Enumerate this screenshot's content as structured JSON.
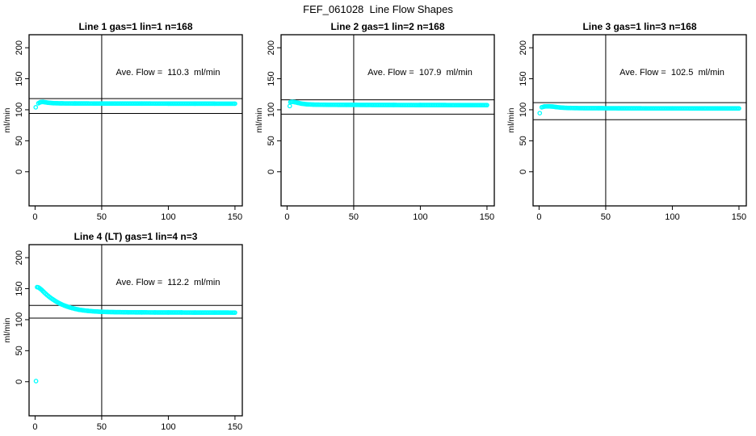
{
  "page_title": "FEF_061028  Line Flow Shapes",
  "colors": {
    "marker": "#00FFFF",
    "axis": "#000000",
    "background": "#FFFFFF"
  },
  "chart_data": [
    {
      "type": "scatter",
      "title": "Line 1 gas=1 lin=1 n=168",
      "annotation": "Ave. Flow =  110.3  ml/min",
      "ave_flow_ml_min": 110.3,
      "n": 168,
      "ylabel": "ml/min",
      "x_ticks": [
        0,
        50,
        100,
        150
      ],
      "y_ticks": [
        0,
        50,
        100,
        150,
        200
      ],
      "xlim": [
        -4.5,
        155.5
      ],
      "ylim": [
        -55,
        221
      ],
      "vline_x": 50,
      "hlines": [
        118,
        94
      ],
      "annotation_pos": [
        100,
        150
      ],
      "series_segments": [
        [
          [
            0.5,
            104
          ]
        ],
        [
          [
            2.5,
            110.5
          ],
          [
            4,
            112.3
          ],
          [
            6,
            112.6
          ],
          [
            8,
            112
          ],
          [
            10,
            111.3
          ],
          [
            14,
            110.6
          ],
          [
            20,
            110.3
          ],
          [
            30,
            110.2
          ],
          [
            45,
            110.1
          ],
          [
            60,
            110
          ],
          [
            80,
            110
          ],
          [
            100,
            109.9
          ],
          [
            120,
            109.9
          ],
          [
            135,
            109.8
          ],
          [
            150,
            109.8
          ]
        ]
      ]
    },
    {
      "type": "scatter",
      "title": "Line 2 gas=1 lin=2 n=168",
      "annotation": "Ave. Flow =  107.9  ml/min",
      "ave_flow_ml_min": 107.9,
      "n": 168,
      "ylabel": "ml/min",
      "x_ticks": [
        0,
        50,
        100,
        150
      ],
      "y_ticks": [
        0,
        50,
        100,
        150,
        200
      ],
      "xlim": [
        -4.5,
        155.5
      ],
      "ylim": [
        -55,
        221
      ],
      "vline_x": 50,
      "hlines": [
        116,
        93
      ],
      "annotation_pos": [
        100,
        150
      ],
      "series_segments": [
        [
          [
            2,
            106
          ]
        ],
        [
          [
            2.5,
            112.3
          ],
          [
            4,
            112.8
          ],
          [
            6,
            112.2
          ],
          [
            8,
            111.2
          ],
          [
            11,
            109.8
          ],
          [
            15,
            108.8
          ],
          [
            20,
            108.3
          ],
          [
            30,
            108
          ],
          [
            45,
            107.9
          ],
          [
            60,
            107.8
          ],
          [
            80,
            107.7
          ],
          [
            100,
            107.6
          ],
          [
            125,
            107.5
          ],
          [
            150,
            107.5
          ]
        ]
      ]
    },
    {
      "type": "scatter",
      "title": "Line 3 gas=1 lin=3 n=168",
      "annotation": "Ave. Flow =  102.5  ml/min",
      "ave_flow_ml_min": 102.5,
      "n": 168,
      "ylabel": "ml/min",
      "x_ticks": [
        0,
        50,
        100,
        150
      ],
      "y_ticks": [
        0,
        50,
        100,
        150,
        200
      ],
      "xlim": [
        -4.5,
        155.5
      ],
      "ylim": [
        -55,
        221
      ],
      "vline_x": 50,
      "hlines": [
        111.5,
        84
      ],
      "annotation_pos": [
        100,
        150
      ],
      "series_segments": [
        [
          [
            0.5,
            94.5
          ]
        ],
        [
          [
            2,
            104
          ],
          [
            4,
            105.3
          ],
          [
            7,
            105.5
          ],
          [
            10,
            105.2
          ],
          [
            13,
            104.3
          ],
          [
            17,
            103.4
          ],
          [
            22,
            102.9
          ],
          [
            30,
            102.6
          ],
          [
            45,
            102.5
          ],
          [
            60,
            102.4
          ],
          [
            80,
            102.3
          ],
          [
            100,
            102.3
          ],
          [
            125,
            102.2
          ],
          [
            150,
            102.2
          ]
        ]
      ]
    },
    {
      "type": "scatter",
      "title": "Line 4 (LT) gas=1 lin=4 n=3",
      "annotation": "Ave. Flow =  112.2  ml/min",
      "ave_flow_ml_min": 112.2,
      "n": 3,
      "ylabel": "ml/min",
      "x_ticks": [
        0,
        50,
        100,
        150
      ],
      "y_ticks": [
        0,
        50,
        100,
        150,
        200
      ],
      "xlim": [
        -4.5,
        155.5
      ],
      "ylim": [
        -55,
        221
      ],
      "vline_x": 50,
      "hlines": [
        123,
        102.5
      ],
      "annotation_pos": [
        100,
        150
      ],
      "series_segments": [
        [
          [
            0.7,
            1
          ]
        ],
        [
          [
            1.5,
            152.5
          ],
          [
            2.5,
            152
          ],
          [
            3.5,
            150.5
          ],
          [
            5,
            148
          ],
          [
            6,
            145.8
          ],
          [
            7,
            143.7
          ],
          [
            8,
            141.7
          ],
          [
            9,
            139.8
          ],
          [
            10,
            138
          ],
          [
            11,
            136.3
          ],
          [
            12,
            134.7
          ],
          [
            13,
            133.2
          ],
          [
            14,
            131.8
          ],
          [
            15,
            130.4
          ],
          [
            16,
            129.1
          ],
          [
            17,
            127.9
          ],
          [
            18,
            126.7
          ],
          [
            19,
            125.6
          ],
          [
            20,
            124.6
          ],
          [
            22,
            122.8
          ],
          [
            24,
            121.2
          ],
          [
            26,
            119.8
          ],
          [
            28,
            118.6
          ],
          [
            30,
            117.5
          ],
          [
            33,
            116.1
          ],
          [
            36,
            115.1
          ],
          [
            40,
            114.1
          ],
          [
            45,
            113.3
          ],
          [
            50,
            112.7
          ],
          [
            55,
            112.4
          ],
          [
            60,
            112.2
          ],
          [
            70,
            111.9
          ],
          [
            80,
            111.8
          ],
          [
            90,
            111.7
          ],
          [
            100,
            111.6
          ],
          [
            110,
            111.6
          ],
          [
            120,
            111.5
          ],
          [
            135,
            111.5
          ],
          [
            150,
            111.4
          ]
        ]
      ]
    }
  ]
}
